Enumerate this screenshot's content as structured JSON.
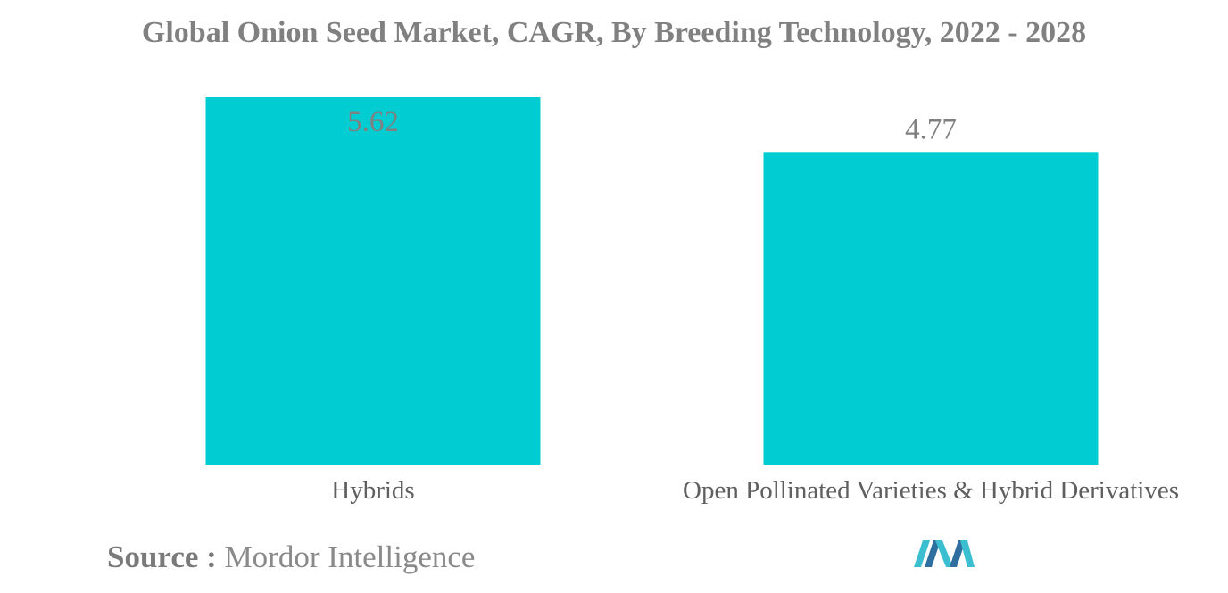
{
  "title": "Global Onion Seed Market, CAGR, By Breeding Technology, 2022 - 2028",
  "source": {
    "label": "Source :",
    "value": "Mordor Intelligence"
  },
  "logo": {
    "icon": "mordor-intelligence-logo",
    "colors": [
      "#2f6f9f",
      "#3bbfd0"
    ]
  },
  "colors": {
    "bar": "#00ccd1",
    "title": "#808080",
    "text": "#5f5f5f",
    "value_label": "#808080"
  },
  "chart_data": {
    "type": "bar",
    "title": "Global Onion Seed Market, CAGR, By Breeding Technology, 2022 - 2028",
    "categories": [
      "Hybrids",
      "Open Pollinated Varieties & Hybrid Derivatives"
    ],
    "values": [
      5.62,
      4.77
    ],
    "xlabel": "",
    "ylabel": "",
    "ylim": [
      0,
      5.62
    ],
    "grid": false,
    "legend": "none",
    "data_labels": [
      "5.62",
      "4.77"
    ]
  }
}
